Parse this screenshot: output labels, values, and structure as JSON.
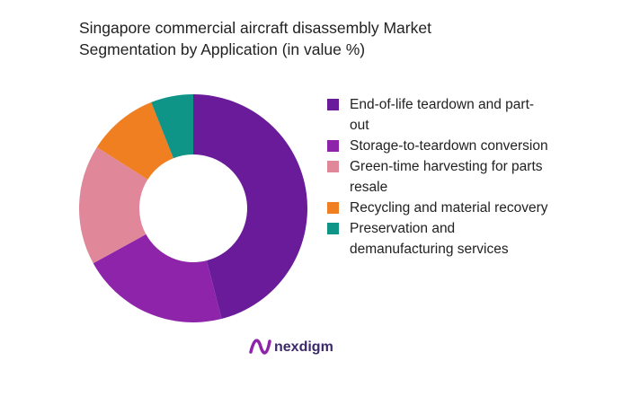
{
  "chart_data": {
    "type": "donut",
    "title": "Singapore commercial aircraft disassembly Market Segmentation by Application (in value %)",
    "categories": [
      "End-of-life teardown and part-out",
      "Storage-to-teardown conversion",
      "Green-time harvesting for parts resale",
      "Recycling and material recovery",
      "Preservation and demanufacturing services"
    ],
    "values": [
      46,
      21,
      17,
      10,
      6
    ],
    "colors": [
      "#6a1b9a",
      "#8e24aa",
      "#e0879a",
      "#f07f22",
      "#0f9488"
    ],
    "legend": "right"
  },
  "brand": "nexdigm"
}
